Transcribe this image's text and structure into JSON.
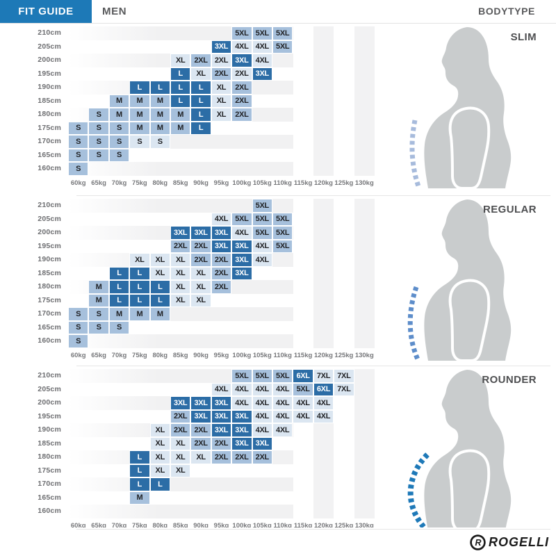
{
  "header": {
    "title": "FIT GUIDE",
    "gender": "MEN",
    "right_label": "BODYTYPE"
  },
  "logo": {
    "brand": "ROGELLI"
  },
  "axis": {
    "weights": [
      "60kg",
      "65kg",
      "70kg",
      "75kg",
      "80kg",
      "85kg",
      "90kg",
      "95kg",
      "100kg",
      "105kg",
      "110kg",
      "115kg",
      "120kg",
      "125kg",
      "130kg"
    ],
    "heights": [
      "210cm",
      "205cm",
      "200cm",
      "195cm",
      "190cm",
      "185cm",
      "180cm",
      "175cm",
      "170cm",
      "165cm",
      "160cm"
    ]
  },
  "colors": {
    "header_blue": "#1d79b7",
    "cell_dark": "#2c6da6",
    "cell_medium": "#a6c0dc",
    "cell_pale": "#dbe6f1",
    "row_stripe": "#f1f1f2",
    "label_gray": "#6d6e71",
    "section_label_gray": "#4d4e50",
    "silhouette_gray": "#c9cccd",
    "dash_slim": "#a7bbdc",
    "dash_regular": "#5d8dca",
    "dash_rounder": "#1e79b8"
  },
  "chart_data": [
    {
      "type": "heatmap",
      "title": "SLIM",
      "x_categories": [
        "60kg",
        "65kg",
        "70kg",
        "75kg",
        "80kg",
        "85kg",
        "90kg",
        "95kg",
        "100kg",
        "105kg",
        "110kg",
        "115kg",
        "120kg",
        "125kg",
        "130kg"
      ],
      "y_categories": [
        "210cm",
        "205cm",
        "200cm",
        "195cm",
        "190cm",
        "185cm",
        "180cm",
        "175cm",
        "170cm",
        "165cm",
        "160cm"
      ],
      "tone_legend": {
        "d": "dark-blue recommended",
        "m": "medium-blue",
        "p": "pale-blue"
      },
      "rows": [
        {
          "height": "210cm",
          "cells": [
            [
              8,
              "5XL",
              "m"
            ],
            [
              9,
              "5XL",
              "m"
            ],
            [
              10,
              "5XL",
              "m"
            ]
          ]
        },
        {
          "height": "205cm",
          "cells": [
            [
              7,
              "3XL",
              "d"
            ],
            [
              8,
              "4XL",
              "p"
            ],
            [
              9,
              "4XL",
              "p"
            ],
            [
              10,
              "5XL",
              "m"
            ]
          ]
        },
        {
          "height": "200cm",
          "cells": [
            [
              5,
              "XL",
              "p"
            ],
            [
              6,
              "2XL",
              "m"
            ],
            [
              7,
              "2XL",
              "p"
            ],
            [
              8,
              "3XL",
              "d"
            ],
            [
              9,
              "4XL",
              "p"
            ]
          ]
        },
        {
          "height": "195cm",
          "cells": [
            [
              5,
              "L",
              "d"
            ],
            [
              6,
              "XL",
              "p"
            ],
            [
              7,
              "2XL",
              "m"
            ],
            [
              8,
              "2XL",
              "p"
            ],
            [
              9,
              "3XL",
              "d"
            ]
          ]
        },
        {
          "height": "190cm",
          "cells": [
            [
              3,
              "L",
              "d"
            ],
            [
              4,
              "L",
              "d"
            ],
            [
              5,
              "L",
              "d"
            ],
            [
              6,
              "L",
              "d"
            ],
            [
              7,
              "XL",
              "p"
            ],
            [
              8,
              "2XL",
              "m"
            ]
          ]
        },
        {
          "height": "185cm",
          "cells": [
            [
              2,
              "M",
              "m"
            ],
            [
              3,
              "M",
              "m"
            ],
            [
              4,
              "M",
              "m"
            ],
            [
              5,
              "L",
              "d"
            ],
            [
              6,
              "L",
              "d"
            ],
            [
              7,
              "XL",
              "p"
            ],
            [
              8,
              "2XL",
              "m"
            ]
          ]
        },
        {
          "height": "180cm",
          "cells": [
            [
              1,
              "S",
              "m"
            ],
            [
              2,
              "M",
              "m"
            ],
            [
              3,
              "M",
              "m"
            ],
            [
              4,
              "M",
              "m"
            ],
            [
              5,
              "M",
              "m"
            ],
            [
              6,
              "L",
              "d"
            ],
            [
              7,
              "XL",
              "p"
            ],
            [
              8,
              "2XL",
              "m"
            ]
          ]
        },
        {
          "height": "175cm",
          "cells": [
            [
              0,
              "S",
              "m"
            ],
            [
              1,
              "S",
              "m"
            ],
            [
              2,
              "S",
              "m"
            ],
            [
              3,
              "M",
              "m"
            ],
            [
              4,
              "M",
              "m"
            ],
            [
              5,
              "M",
              "m"
            ],
            [
              6,
              "L",
              "d"
            ]
          ]
        },
        {
          "height": "170cm",
          "cells": [
            [
              0,
              "S",
              "m"
            ],
            [
              1,
              "S",
              "m"
            ],
            [
              2,
              "S",
              "m"
            ],
            [
              3,
              "S",
              "p"
            ],
            [
              4,
              "S",
              "p"
            ]
          ]
        },
        {
          "height": "165cm",
          "cells": [
            [
              0,
              "S",
              "m"
            ],
            [
              1,
              "S",
              "m"
            ],
            [
              2,
              "S",
              "m"
            ]
          ]
        },
        {
          "height": "160cm",
          "cells": [
            [
              0,
              "S",
              "m"
            ]
          ]
        }
      ]
    },
    {
      "type": "heatmap",
      "title": "REGULAR",
      "x_categories": [
        "60kg",
        "65kg",
        "70kg",
        "75kg",
        "80kg",
        "85kg",
        "90kg",
        "95kg",
        "100kg",
        "105kg",
        "110kg",
        "115kg",
        "120kg",
        "125kg",
        "130kg"
      ],
      "y_categories": [
        "210cm",
        "205cm",
        "200cm",
        "195cm",
        "190cm",
        "185cm",
        "180cm",
        "175cm",
        "170cm",
        "165cm",
        "160cm"
      ],
      "rows": [
        {
          "height": "210cm",
          "cells": [
            [
              9,
              "5XL",
              "m"
            ]
          ]
        },
        {
          "height": "205cm",
          "cells": [
            [
              7,
              "4XL",
              "p"
            ],
            [
              8,
              "5XL",
              "m"
            ],
            [
              9,
              "5XL",
              "m"
            ],
            [
              10,
              "5XL",
              "m"
            ]
          ]
        },
        {
          "height": "200cm",
          "cells": [
            [
              5,
              "3XL",
              "d"
            ],
            [
              6,
              "3XL",
              "d"
            ],
            [
              7,
              "3XL",
              "d"
            ],
            [
              8,
              "4XL",
              "p"
            ],
            [
              9,
              "5XL",
              "m"
            ],
            [
              10,
              "5XL",
              "m"
            ]
          ]
        },
        {
          "height": "195cm",
          "cells": [
            [
              5,
              "2XL",
              "m"
            ],
            [
              6,
              "2XL",
              "m"
            ],
            [
              7,
              "3XL",
              "d"
            ],
            [
              8,
              "3XL",
              "d"
            ],
            [
              9,
              "4XL",
              "p"
            ],
            [
              10,
              "5XL",
              "m"
            ]
          ]
        },
        {
          "height": "190cm",
          "cells": [
            [
              3,
              "XL",
              "p"
            ],
            [
              4,
              "XL",
              "p"
            ],
            [
              5,
              "XL",
              "p"
            ],
            [
              6,
              "2XL",
              "m"
            ],
            [
              7,
              "2XL",
              "m"
            ],
            [
              8,
              "3XL",
              "d"
            ],
            [
              9,
              "4XL",
              "p"
            ]
          ]
        },
        {
          "height": "185cm",
          "cells": [
            [
              2,
              "L",
              "d"
            ],
            [
              3,
              "L",
              "d"
            ],
            [
              4,
              "XL",
              "p"
            ],
            [
              5,
              "XL",
              "p"
            ],
            [
              6,
              "XL",
              "p"
            ],
            [
              7,
              "2XL",
              "m"
            ],
            [
              8,
              "3XL",
              "d"
            ]
          ]
        },
        {
          "height": "180cm",
          "cells": [
            [
              1,
              "M",
              "m"
            ],
            [
              2,
              "L",
              "d"
            ],
            [
              3,
              "L",
              "d"
            ],
            [
              4,
              "L",
              "d"
            ],
            [
              5,
              "XL",
              "p"
            ],
            [
              6,
              "XL",
              "p"
            ],
            [
              7,
              "2XL",
              "m"
            ]
          ]
        },
        {
          "height": "175cm",
          "cells": [
            [
              1,
              "M",
              "m"
            ],
            [
              2,
              "L",
              "d"
            ],
            [
              3,
              "L",
              "d"
            ],
            [
              4,
              "L",
              "d"
            ],
            [
              5,
              "XL",
              "p"
            ],
            [
              6,
              "XL",
              "p"
            ]
          ]
        },
        {
          "height": "170cm",
          "cells": [
            [
              0,
              "S",
              "m"
            ],
            [
              1,
              "S",
              "m"
            ],
            [
              2,
              "M",
              "m"
            ],
            [
              3,
              "M",
              "m"
            ],
            [
              4,
              "M",
              "m"
            ]
          ]
        },
        {
          "height": "165cm",
          "cells": [
            [
              0,
              "S",
              "m"
            ],
            [
              1,
              "S",
              "m"
            ],
            [
              2,
              "S",
              "m"
            ]
          ]
        },
        {
          "height": "160cm",
          "cells": [
            [
              0,
              "S",
              "m"
            ]
          ]
        }
      ]
    },
    {
      "type": "heatmap",
      "title": "ROUNDER",
      "x_categories": [
        "60kg",
        "65kg",
        "70kg",
        "75kg",
        "80kg",
        "85kg",
        "90kg",
        "95kg",
        "100kg",
        "105kg",
        "110kg",
        "115kg",
        "120kg",
        "125kg",
        "130kg"
      ],
      "y_categories": [
        "210cm",
        "205cm",
        "200cm",
        "195cm",
        "190cm",
        "185cm",
        "180cm",
        "175cm",
        "170cm",
        "165cm",
        "160cm"
      ],
      "rows": [
        {
          "height": "210cm",
          "cells": [
            [
              8,
              "5XL",
              "m"
            ],
            [
              9,
              "5XL",
              "m"
            ],
            [
              10,
              "5XL",
              "m"
            ],
            [
              11,
              "6XL",
              "d"
            ],
            [
              12,
              "7XL",
              "p"
            ],
            [
              13,
              "7XL",
              "p"
            ]
          ]
        },
        {
          "height": "205cm",
          "cells": [
            [
              7,
              "4XL",
              "p"
            ],
            [
              8,
              "4XL",
              "p"
            ],
            [
              9,
              "4XL",
              "p"
            ],
            [
              10,
              "4XL",
              "p"
            ],
            [
              11,
              "5XL",
              "m"
            ],
            [
              12,
              "6XL",
              "d"
            ],
            [
              13,
              "7XL",
              "p"
            ]
          ]
        },
        {
          "height": "200cm",
          "cells": [
            [
              5,
              "3XL",
              "d"
            ],
            [
              6,
              "3XL",
              "d"
            ],
            [
              7,
              "3XL",
              "d"
            ],
            [
              8,
              "4XL",
              "p"
            ],
            [
              9,
              "4XL",
              "p"
            ],
            [
              10,
              "4XL",
              "p"
            ],
            [
              11,
              "4XL",
              "p"
            ],
            [
              12,
              "4XL",
              "p"
            ]
          ]
        },
        {
          "height": "195cm",
          "cells": [
            [
              5,
              "2XL",
              "m"
            ],
            [
              6,
              "3XL",
              "d"
            ],
            [
              7,
              "3XL",
              "d"
            ],
            [
              8,
              "3XL",
              "d"
            ],
            [
              9,
              "4XL",
              "p"
            ],
            [
              10,
              "4XL",
              "p"
            ],
            [
              11,
              "4XL",
              "p"
            ],
            [
              12,
              "4XL",
              "p"
            ]
          ]
        },
        {
          "height": "190cm",
          "cells": [
            [
              4,
              "XL",
              "p"
            ],
            [
              5,
              "2XL",
              "m"
            ],
            [
              6,
              "2XL",
              "m"
            ],
            [
              7,
              "3XL",
              "d"
            ],
            [
              8,
              "3XL",
              "d"
            ],
            [
              9,
              "4XL",
              "p"
            ],
            [
              10,
              "4XL",
              "p"
            ]
          ]
        },
        {
          "height": "185cm",
          "cells": [
            [
              4,
              "XL",
              "p"
            ],
            [
              5,
              "XL",
              "p"
            ],
            [
              6,
              "2XL",
              "m"
            ],
            [
              7,
              "2XL",
              "m"
            ],
            [
              8,
              "3XL",
              "d"
            ],
            [
              9,
              "3XL",
              "d"
            ]
          ]
        },
        {
          "height": "180cm",
          "cells": [
            [
              3,
              "L",
              "d"
            ],
            [
              4,
              "XL",
              "p"
            ],
            [
              5,
              "XL",
              "p"
            ],
            [
              6,
              "XL",
              "p"
            ],
            [
              7,
              "2XL",
              "m"
            ],
            [
              8,
              "2XL",
              "m"
            ],
            [
              9,
              "2XL",
              "m"
            ]
          ]
        },
        {
          "height": "175cm",
          "cells": [
            [
              3,
              "L",
              "d"
            ],
            [
              4,
              "XL",
              "p"
            ],
            [
              5,
              "XL",
              "p"
            ]
          ]
        },
        {
          "height": "170cm",
          "cells": [
            [
              3,
              "L",
              "d"
            ],
            [
              4,
              "L",
              "d"
            ]
          ]
        },
        {
          "height": "165cm",
          "cells": [
            [
              3,
              "M",
              "m"
            ]
          ]
        },
        {
          "height": "160cm",
          "cells": []
        }
      ]
    }
  ]
}
